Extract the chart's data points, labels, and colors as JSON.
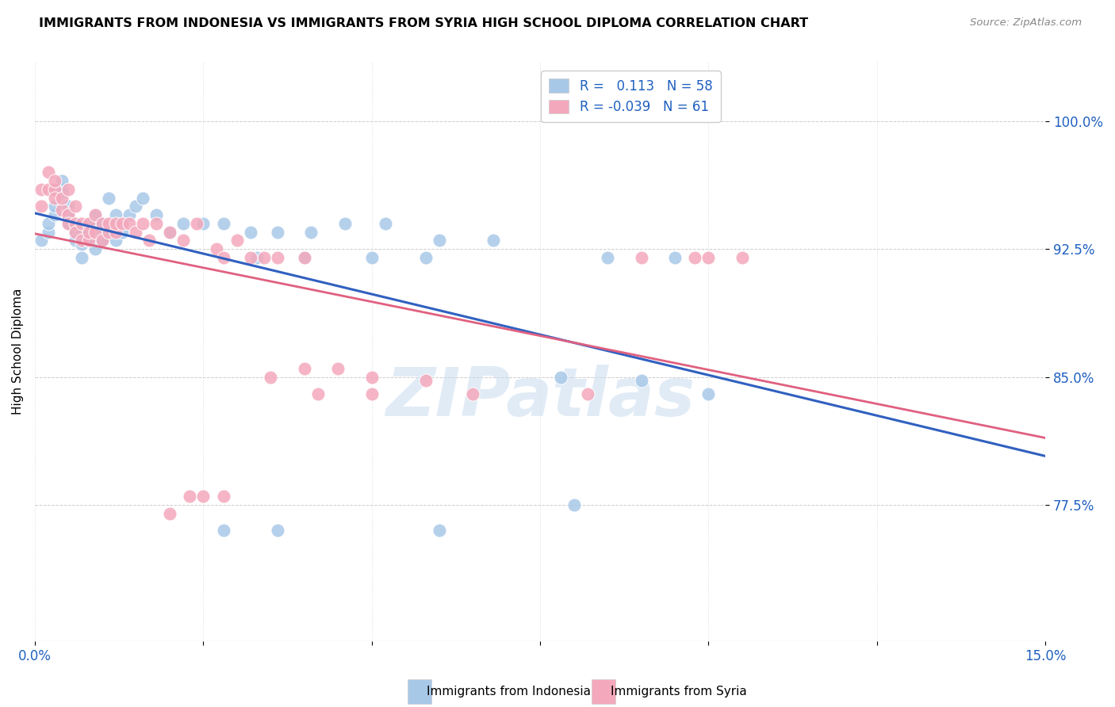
{
  "title": "IMMIGRANTS FROM INDONESIA VS IMMIGRANTS FROM SYRIA HIGH SCHOOL DIPLOMA CORRELATION CHART",
  "source": "Source: ZipAtlas.com",
  "ylabel": "High School Diploma",
  "ytick_labels": [
    "77.5%",
    "85.0%",
    "92.5%",
    "100.0%"
  ],
  "ytick_values": [
    0.775,
    0.85,
    0.925,
    1.0
  ],
  "xlim": [
    0.0,
    0.15
  ],
  "ylim": [
    0.695,
    1.035
  ],
  "legend_label_indonesia": "Immigrants from Indonesia",
  "legend_label_syria": "Immigrants from Syria",
  "R_indonesia": 0.113,
  "N_indonesia": 58,
  "R_syria": -0.039,
  "N_syria": 61,
  "color_indonesia": "#A8C8E8",
  "color_syria": "#F4A8BC",
  "trendline_indonesia": "#3060C0",
  "trendline_syria": "#E06080",
  "watermark": "ZIPatlas",
  "indonesia_x": [
    0.001,
    0.002,
    0.002,
    0.003,
    0.003,
    0.003,
    0.004,
    0.004,
    0.004,
    0.005,
    0.005,
    0.005,
    0.006,
    0.006,
    0.006,
    0.007,
    0.007,
    0.007,
    0.008,
    0.008,
    0.009,
    0.009,
    0.009,
    0.01,
    0.01,
    0.011,
    0.011,
    0.012,
    0.012,
    0.013,
    0.014,
    0.015,
    0.016,
    0.018,
    0.02,
    0.022,
    0.025,
    0.028,
    0.032,
    0.036,
    0.041,
    0.046,
    0.052,
    0.06,
    0.068,
    0.078,
    0.09,
    0.1,
    0.036,
    0.08,
    0.04,
    0.05,
    0.06,
    0.058,
    0.085,
    0.095,
    0.028,
    0.033
  ],
  "indonesia_y": [
    0.93,
    0.935,
    0.94,
    0.945,
    0.95,
    0.96,
    0.96,
    0.965,
    0.958,
    0.94,
    0.95,
    0.945,
    0.935,
    0.93,
    0.94,
    0.928,
    0.935,
    0.92,
    0.93,
    0.94,
    0.935,
    0.925,
    0.945,
    0.94,
    0.93,
    0.935,
    0.955,
    0.945,
    0.93,
    0.935,
    0.945,
    0.95,
    0.955,
    0.945,
    0.935,
    0.94,
    0.94,
    0.94,
    0.935,
    0.935,
    0.935,
    0.94,
    0.94,
    0.93,
    0.93,
    0.85,
    0.848,
    0.84,
    0.76,
    0.775,
    0.92,
    0.92,
    0.76,
    0.92,
    0.92,
    0.92,
    0.76,
    0.92
  ],
  "syria_x": [
    0.001,
    0.001,
    0.002,
    0.002,
    0.003,
    0.003,
    0.003,
    0.004,
    0.004,
    0.005,
    0.005,
    0.005,
    0.006,
    0.006,
    0.006,
    0.007,
    0.007,
    0.008,
    0.008,
    0.008,
    0.009,
    0.009,
    0.01,
    0.01,
    0.011,
    0.011,
    0.012,
    0.012,
    0.013,
    0.014,
    0.015,
    0.016,
    0.017,
    0.018,
    0.02,
    0.022,
    0.024,
    0.027,
    0.03,
    0.034,
    0.05,
    0.058,
    0.065,
    0.082,
    0.09,
    0.098,
    0.1,
    0.105,
    0.02,
    0.023,
    0.025,
    0.028,
    0.035,
    0.04,
    0.045,
    0.028,
    0.032,
    0.036,
    0.04,
    0.05,
    0.042
  ],
  "syria_y": [
    0.96,
    0.95,
    0.97,
    0.96,
    0.96,
    0.955,
    0.965,
    0.948,
    0.955,
    0.945,
    0.96,
    0.94,
    0.94,
    0.95,
    0.935,
    0.93,
    0.94,
    0.94,
    0.93,
    0.935,
    0.935,
    0.945,
    0.93,
    0.94,
    0.935,
    0.94,
    0.935,
    0.94,
    0.94,
    0.94,
    0.935,
    0.94,
    0.93,
    0.94,
    0.935,
    0.93,
    0.94,
    0.925,
    0.93,
    0.92,
    0.85,
    0.848,
    0.84,
    0.84,
    0.92,
    0.92,
    0.92,
    0.92,
    0.77,
    0.78,
    0.78,
    0.78,
    0.85,
    0.855,
    0.855,
    0.92,
    0.92,
    0.92,
    0.92,
    0.84,
    0.84
  ]
}
